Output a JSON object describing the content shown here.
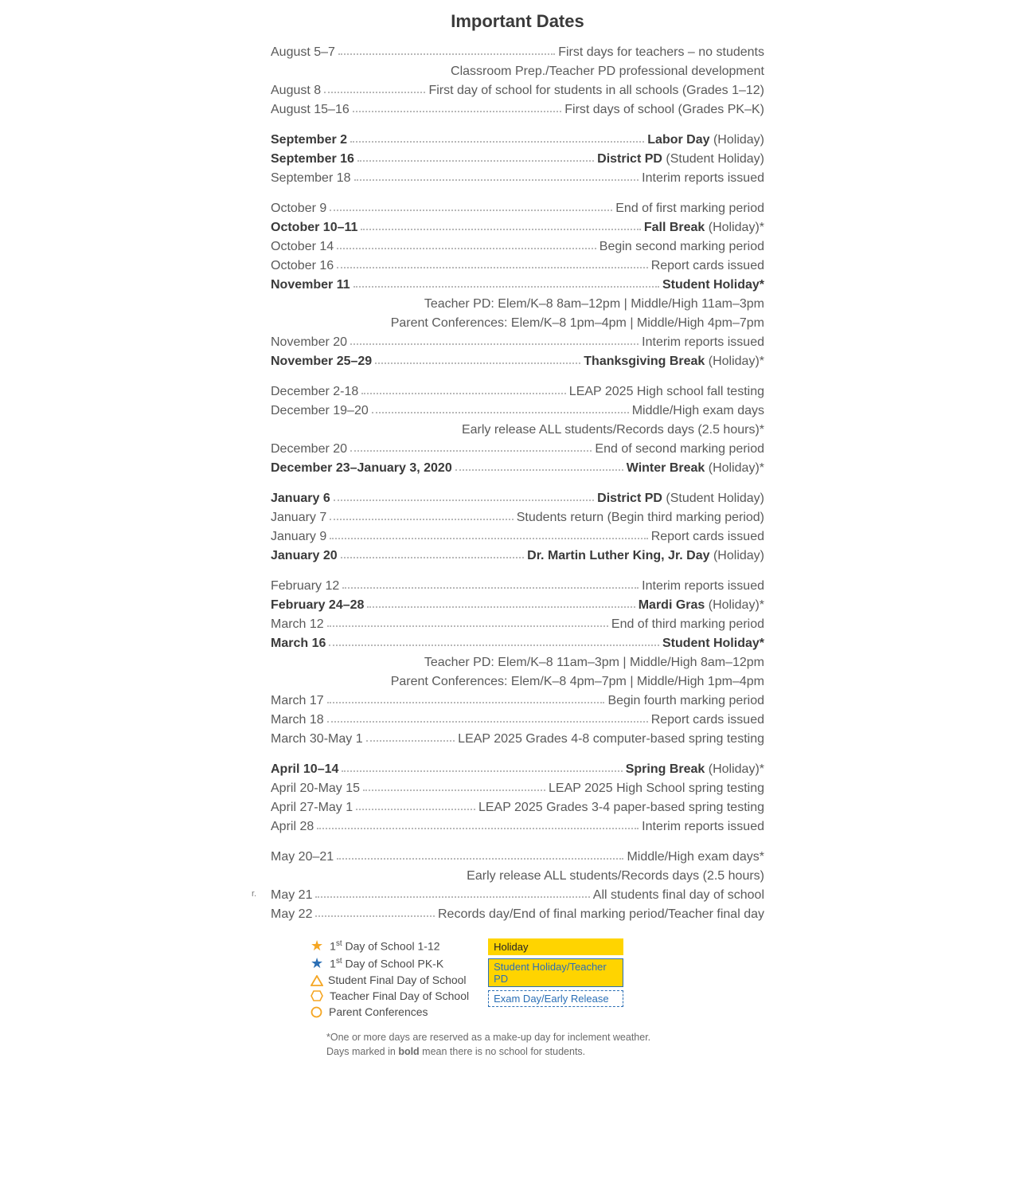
{
  "title": "Important Dates",
  "blocks": [
    {
      "rows": [
        {
          "date": "August 5–7",
          "desc": "First days for teachers – no students",
          "bold": false
        },
        {
          "sub": "Classroom Prep./Teacher PD professional development"
        },
        {
          "date": "August 8",
          "desc": "First day of school for students in all schools (Grades 1–12)",
          "bold": false
        },
        {
          "date": "August 15–16",
          "desc": "First days of school (Grades PK–K)",
          "bold": false
        }
      ]
    },
    {
      "rows": [
        {
          "date": "September 2",
          "label": "Labor Day",
          "note": " (Holiday)",
          "bold": true
        },
        {
          "date": "September 16",
          "label": "District PD",
          "note": " (Student Holiday)",
          "bold": true
        },
        {
          "date": "September 18",
          "desc": "Interim reports issued",
          "bold": false
        }
      ]
    },
    {
      "rows": [
        {
          "date": "October 9",
          "desc": "End of first marking period",
          "bold": false
        },
        {
          "date": "October 10–11",
          "label": "Fall Break",
          "note": " (Holiday)*",
          "bold": true
        },
        {
          "date": "October 14",
          "desc": "Begin second marking period",
          "bold": false
        },
        {
          "date": "October 16",
          "desc": "Report cards issued",
          "bold": false
        },
        {
          "date": "November 11",
          "label": "Student Holiday*",
          "note": "",
          "bold": true
        },
        {
          "sub": "Teacher PD: Elem/K–8 8am–12pm | Middle/High 11am–3pm"
        },
        {
          "sub": "Parent Conferences: Elem/K–8 1pm–4pm | Middle/High 4pm–7pm"
        },
        {
          "date": "November 20",
          "desc": "Interim reports issued",
          "bold": false
        },
        {
          "date": "November 25–29",
          "label": "Thanksgiving Break",
          "note": " (Holiday)*",
          "bold": true
        }
      ]
    },
    {
      "rows": [
        {
          "date": "December 2-18",
          "desc": "LEAP 2025 High school fall testing",
          "bold": false
        },
        {
          "date": "December 19–20",
          "desc": "Middle/High exam days",
          "bold": false
        },
        {
          "sub": "Early release ALL students/Records days (2.5 hours)*"
        },
        {
          "date": "December 20",
          "desc": "End of second marking period",
          "bold": false
        },
        {
          "date": "December 23–January 3, 2020",
          "label": "Winter Break",
          "note": " (Holiday)*",
          "bold": true
        }
      ]
    },
    {
      "rows": [
        {
          "date": "January 6",
          "label": "District PD",
          "note": " (Student Holiday)",
          "bold": true
        },
        {
          "date": "January 7",
          "desc": "Students return (Begin third marking period)",
          "bold": false
        },
        {
          "date": "January 9",
          "desc": "Report cards issued",
          "bold": false
        },
        {
          "date": "January 20",
          "label": "Dr. Martin Luther King, Jr. Day",
          "note": " (Holiday)",
          "bold": true
        }
      ]
    },
    {
      "rows": [
        {
          "date": "February 12",
          "desc": "Interim reports issued",
          "bold": false
        },
        {
          "date": "February 24–28",
          "label": "Mardi Gras",
          "note": " (Holiday)*",
          "bold": true
        },
        {
          "date": "March 12",
          "desc": "End of third marking period",
          "bold": false
        },
        {
          "date": "March 16",
          "label": "Student Holiday*",
          "note": "",
          "bold": true
        },
        {
          "sub": "Teacher PD: Elem/K–8 11am–3pm | Middle/High 8am–12pm"
        },
        {
          "sub": "Parent Conferences: Elem/K–8 4pm–7pm | Middle/High 1pm–4pm"
        },
        {
          "date": "March 17",
          "desc": "Begin fourth marking period",
          "bold": false
        },
        {
          "date": "March 18",
          "desc": "Report cards issued",
          "bold": false
        },
        {
          "date": "March 30-May 1",
          "desc": "LEAP 2025 Grades 4-8 computer-based spring testing",
          "bold": false
        }
      ]
    },
    {
      "rows": [
        {
          "date": "April 10–14",
          "label": "Spring Break",
          "note": " (Holiday)*",
          "bold": true
        },
        {
          "date": "April 20-May 15",
          "desc": "LEAP 2025 High School spring testing",
          "bold": false
        },
        {
          "date": "April 27-May 1",
          "desc": "LEAP 2025 Grades 3-4 paper-based spring testing",
          "bold": false
        },
        {
          "date": "April 28",
          "desc": "Interim reports issued",
          "bold": false
        }
      ]
    },
    {
      "rows": [
        {
          "date": "May 20–21",
          "desc": "Middle/High exam days*",
          "bold": false
        },
        {
          "sub": "Early release ALL students/Records days (2.5 hours)"
        },
        {
          "date": "May 21",
          "desc": "All students final day of school",
          "bold": false,
          "leftmark": true
        },
        {
          "date": "May 22",
          "desc": "Records day/End of final marking period/Teacher final day",
          "bold": false
        }
      ]
    }
  ],
  "legend": {
    "left": [
      {
        "icon": "star-orange",
        "text_html": "1<sup>st</sup> Day of School 1-12"
      },
      {
        "icon": "star-blue",
        "text_html": "1<sup>st</sup> Day of School PK-K"
      },
      {
        "icon": "triangle",
        "text": "Student Final Day of School"
      },
      {
        "icon": "hexagon",
        "text": "Teacher Final Day of School"
      },
      {
        "icon": "circle",
        "text": "Parent Conferences"
      }
    ],
    "right": [
      {
        "class": "sw-holiday",
        "text": "Holiday"
      },
      {
        "class": "sw-student",
        "text": "Student Holiday/Teacher PD"
      },
      {
        "class": "sw-exam",
        "text": "Exam Day/Early Release"
      }
    ]
  },
  "footnote_line1": "*One or more days are reserved as a make-up day for inclement weather.",
  "footnote_line2_pre": "Days marked in ",
  "footnote_line2_bold": "bold",
  "footnote_line2_post": " mean there is no school for students.",
  "colors": {
    "text": "#5a5a5a",
    "bold_text": "#3a3a3a",
    "dots": "#b8b8b8",
    "orange": "#f5a623",
    "blue": "#2b6fb5",
    "yellow": "#ffd400"
  }
}
